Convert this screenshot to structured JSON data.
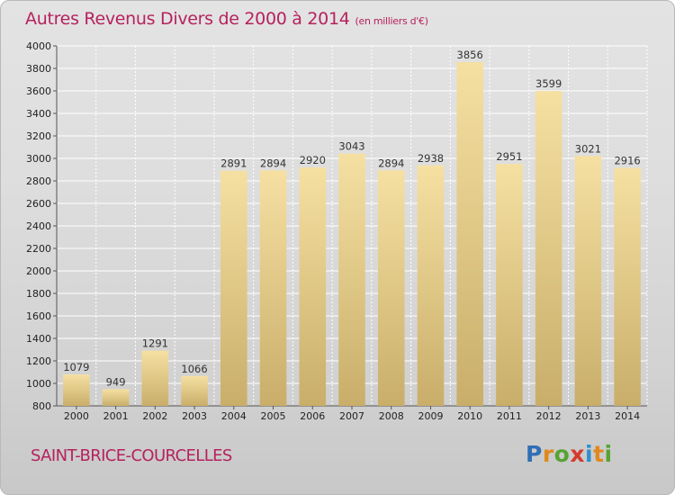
{
  "header": {
    "title": "Autres Revenus Divers de 2000 à 2014",
    "subtitle": "(en milliers d'€)"
  },
  "footer": {
    "commune": "SAINT-BRICE-COURCELLES",
    "logo_letters": [
      "P",
      "r",
      "o",
      "x",
      "i",
      "t",
      "i"
    ],
    "logo_colors": [
      "#2f6fb5",
      "#e0891c",
      "#57a333",
      "#d6392e",
      "#2f8fcf",
      "#e0891c",
      "#57a333"
    ]
  },
  "colors": {
    "bar_light": "#f5e0a2",
    "bar_dark": "#c9ae6a",
    "title": "#b5225d"
  },
  "chart_data": {
    "type": "bar",
    "title": "Autres Revenus Divers de 2000 à 2014",
    "subtitle": "(en milliers d'€)",
    "categories": [
      "2000",
      "2001",
      "2002",
      "2003",
      "2004",
      "2005",
      "2006",
      "2007",
      "2008",
      "2009",
      "2010",
      "2011",
      "2012",
      "2013",
      "2014"
    ],
    "values": [
      1079,
      949,
      1291,
      1066,
      2891,
      2894,
      2920,
      3043,
      2894,
      2938,
      3856,
      2951,
      3599,
      3021,
      2916
    ],
    "ylim": [
      800,
      4000
    ],
    "yticks": [
      800,
      1000,
      1200,
      1400,
      1600,
      1800,
      2000,
      2200,
      2400,
      2600,
      2800,
      3000,
      3200,
      3400,
      3600,
      3800,
      4000
    ],
    "grid": true,
    "legend": "none"
  }
}
